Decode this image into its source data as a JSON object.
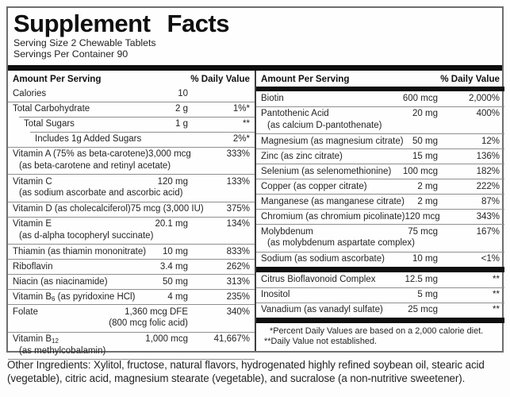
{
  "title": "Supplement Facts",
  "serving_size": "Serving Size 2 Chewable Tablets",
  "servings_per_container": "Servings Per Container 90",
  "col_header": {
    "amount": "Amount Per Serving",
    "dv": "% Daily Value"
  },
  "colors": {
    "bar": "#0e0e0e",
    "hairline": "#8f8f8f",
    "border": "#6e6e6e",
    "ink": "#1f1f1f",
    "background": "#fdfdfd"
  },
  "left": {
    "rows": [
      {
        "name": "Calories",
        "amount": "10",
        "dv": ""
      },
      {
        "name": "Total Carbohydrate",
        "amount": "2 g",
        "dv": "1%*"
      },
      {
        "name": "Total Sugars",
        "amount": "1 g",
        "dv": "**"
      },
      {
        "name": "Includes 1g Added Sugars",
        "amount": "",
        "dv": "2%*"
      },
      {
        "name": "Vitamin A (75% as beta-carotene)",
        "sub": "(as beta-carotene and retinyl acetate)",
        "amount": "3,000 mcg",
        "dv": "333%"
      },
      {
        "name": "Vitamin C",
        "sub": "(as sodium ascorbate and ascorbic acid)",
        "amount": "120 mg",
        "dv": "133%"
      },
      {
        "name": "Vitamin D (as cholecalciferol)",
        "amount": "75 mcg (3,000 IU)",
        "dv": "375%"
      },
      {
        "name": "Vitamin E",
        "sub": "(as d-alpha tocopheryl succinate)",
        "amount": "20.1 mg",
        "dv": "134%"
      },
      {
        "name": "Thiamin (as thiamin mononitrate)",
        "amount": "10 mg",
        "dv": "833%"
      },
      {
        "name": "Riboflavin",
        "amount": "3.4 mg",
        "dv": "262%"
      },
      {
        "name": "Niacin (as niacinamide)",
        "amount": "50 mg",
        "dv": "313%"
      },
      {
        "name_pre": "Vitamin B",
        "name_sub": "6",
        "name_post": " (as pyridoxine HCl)",
        "amount": "4 mg",
        "dv": "235%"
      },
      {
        "name": "Folate",
        "amount": "1,360 mcg DFE",
        "amount_sub": "(800 mcg folic acid)",
        "dv": "340%"
      },
      {
        "name_pre": "Vitamin B",
        "name_sub": "12",
        "name_post": "",
        "sub": "(as methylcobalamin)",
        "amount": "1,000 mcg",
        "dv": "41,667%"
      }
    ]
  },
  "right": {
    "rows": [
      {
        "name": "Biotin",
        "amount": "600 mcg",
        "dv": "2,000%"
      },
      {
        "name": "Pantothenic Acid",
        "sub": "(as calcium D-pantothenate)",
        "amount": "20 mg",
        "dv": "400%"
      },
      {
        "name": "Magnesium (as magnesium citrate)",
        "amount": "50 mg",
        "dv": "12%"
      },
      {
        "name": "Zinc (as zinc citrate)",
        "amount": "15 mg",
        "dv": "136%"
      },
      {
        "name": "Selenium (as selenomethionine)",
        "amount": "100 mcg",
        "dv": "182%"
      },
      {
        "name": "Copper (as copper citrate)",
        "amount": "2 mg",
        "dv": "222%"
      },
      {
        "name": "Manganese (as manganese citrate)",
        "amount": "2 mg",
        "dv": "87%"
      },
      {
        "name": "Chromium (as chromium picolinate)",
        "amount": "120 mcg",
        "dv": "343%"
      },
      {
        "name": "Molybdenum",
        "sub": "(as molybdenum aspartate complex)",
        "amount": "75 mcg",
        "dv": "167%"
      },
      {
        "name": "Sodium (as sodium ascorbate)",
        "amount": "10 mg",
        "dv": "<1%"
      }
    ],
    "rows2": [
      {
        "name": "Citrus Bioflavonoid Complex",
        "amount": "12.5 mg",
        "dv": "**"
      },
      {
        "name": "Inositol",
        "amount": "5 mg",
        "dv": "**"
      },
      {
        "name": "Vanadium (as vanadyl sulfate)",
        "amount": "25 mcg",
        "dv": "**"
      }
    ],
    "footnotes": [
      "*Percent Daily Values are based on a 2,000 calorie diet.",
      "**Daily Value not established."
    ]
  },
  "other_ingredients": "Other Ingredients: Xylitol, fructose, natural flavors, hydrogenated highly refined soybean oil, stearic acid (vegetable), citric acid, magnesium stearate (vegetable), and sucralose (a non-nutritive sweetener)."
}
